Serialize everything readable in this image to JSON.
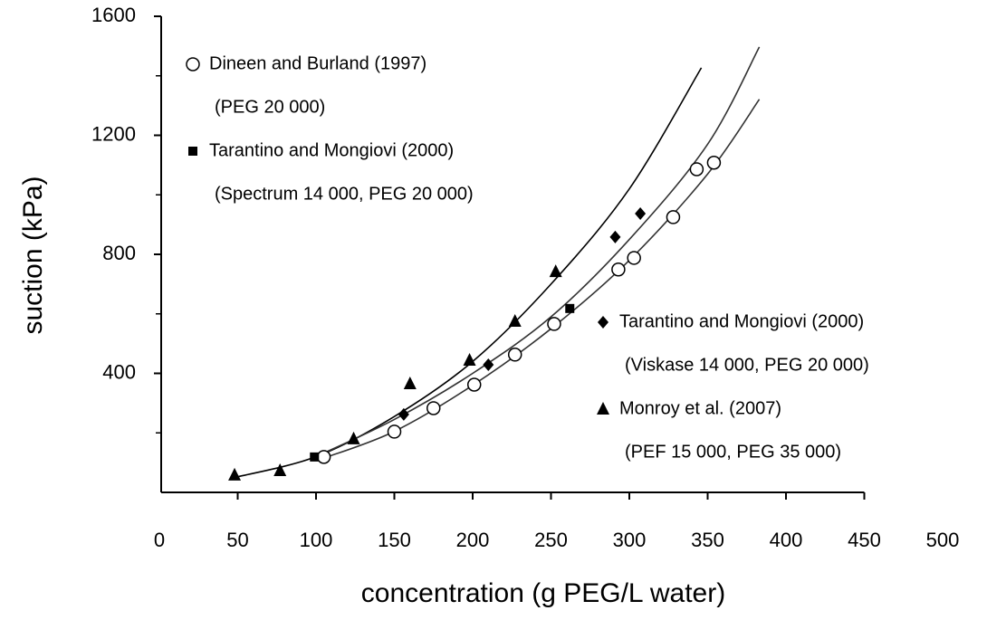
{
  "chart_data": {
    "type": "scatter",
    "x_label": "concentration (g PEG/L water)",
    "y_label": "suction (kPa)",
    "xlim": [
      0,
      500
    ],
    "xticks": [
      0,
      50,
      100,
      150,
      200,
      250,
      300,
      350,
      400,
      450,
      500
    ],
    "ylim": [
      0,
      1600
    ],
    "yticks": [
      400,
      800,
      1200,
      1600
    ],
    "yminor_ticks": [
      200,
      600,
      1000,
      1400
    ],
    "series": [
      {
        "name": "Dineen and Burland (1997)",
        "detail": "(PEG 20 000)",
        "marker": "circle",
        "color": "#000000",
        "x": [
          105,
          150,
          175,
          201,
          227,
          252,
          293,
          303,
          328,
          343,
          354
        ],
        "values": [
          119,
          204,
          283,
          362,
          463,
          566,
          749,
          788,
          925,
          1086,
          1108
        ]
      },
      {
        "name": "Tarantino and Mongiovi (2000)",
        "detail": "(Spectrum 14 000, PEG 20 000)",
        "marker": "square",
        "color": "#000000",
        "x": [
          99,
          262
        ],
        "values": [
          119,
          618
        ]
      },
      {
        "name": "Tarantino and Mongiovi (2000)",
        "detail": "(Viskase 14 000, PEG 20 000)",
        "marker": "diamond",
        "color": "#000000",
        "x": [
          156,
          210,
          291,
          307
        ],
        "values": [
          262,
          429,
          858,
          937
        ]
      },
      {
        "name": "Monroy et al. (2007)",
        "detail": "(PEF 15 000, PEG 35 000)",
        "marker": "triangle",
        "color": "#000000",
        "x": [
          48,
          77,
          124,
          160,
          198,
          227,
          253
        ],
        "values": [
          58,
          73,
          180,
          365,
          444,
          575,
          742
        ]
      }
    ],
    "curves": [
      {
        "color": "#000000",
        "x": [
          48,
          100,
          150,
          200,
          250,
          300,
          346
        ],
        "values": [
          50,
          120,
          255,
          440,
          700,
          1020,
          1427
        ]
      },
      {
        "color": "#333333",
        "x": [
          100,
          150,
          200,
          250,
          300,
          350,
          383
        ],
        "values": [
          120,
          245,
          400,
          590,
          850,
          1170,
          1497
        ]
      },
      {
        "color": "#333333",
        "x": [
          105,
          150,
          200,
          250,
          300,
          350,
          383
        ],
        "values": [
          115,
          205,
          360,
          550,
          780,
          1070,
          1321
        ]
      }
    ]
  }
}
